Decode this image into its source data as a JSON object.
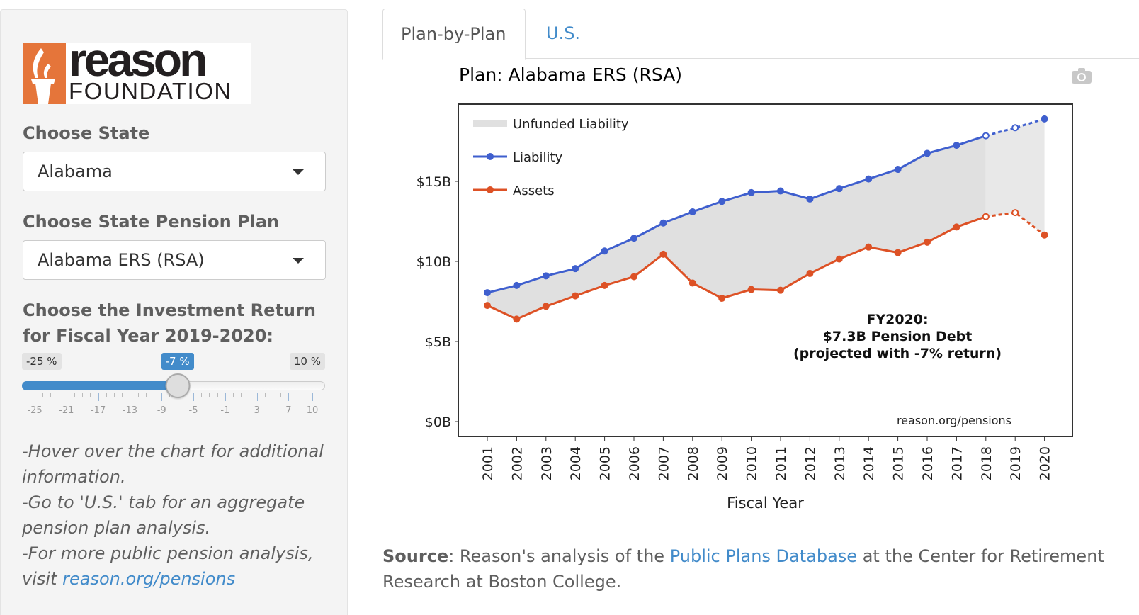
{
  "sidebar": {
    "logo": {
      "word1": "reason",
      "word2": "FOUNDATION",
      "brand_color": "#e5753a"
    },
    "state_label": "Choose State",
    "state_value": "Alabama",
    "plan_label": "Choose State Pension Plan",
    "plan_value": "Alabama ERS (RSA)",
    "return_label_line1": "Choose the Investment Return",
    "return_label_line2": "for Fiscal Year 2019-2020:",
    "slider": {
      "min_label": "-25 %",
      "max_label": "10 %",
      "value_label": "-7 %",
      "min": -25,
      "max": 10,
      "value": -7,
      "tick_labels": [
        "-25",
        "-21",
        "-17",
        "-13",
        "-9",
        "-5",
        "-1",
        "3",
        "7",
        "10"
      ],
      "accent": "#428bca"
    },
    "help": {
      "line1": "-Hover over the chart for additional information.",
      "line2": "-Go to 'U.S.' tab for an aggregate pension plan analysis.",
      "line3_prefix": "-For more public pension analysis, visit ",
      "line3_link": "reason.org/pensions"
    }
  },
  "tabs": [
    {
      "label": "Plan-by-Plan",
      "active": true
    },
    {
      "label": "U.S.",
      "active": false
    }
  ],
  "chart_header": {
    "title": "Plan: Alabama ERS (RSA)",
    "camera_icon": "camera-icon"
  },
  "chart_data": {
    "type": "area",
    "title": "Plan: Alabama ERS (RSA)",
    "xlabel": "Fiscal Year",
    "ylabel": "",
    "x": [
      2001,
      2002,
      2003,
      2004,
      2005,
      2006,
      2007,
      2008,
      2009,
      2010,
      2011,
      2012,
      2013,
      2014,
      2015,
      2016,
      2017,
      2018,
      2019,
      2020
    ],
    "ylim": [
      0,
      20
    ],
    "yticks": [
      0,
      5,
      10,
      15
    ],
    "ytick_labels": [
      "$0B",
      "$5B",
      "$10B",
      "$15B"
    ],
    "units": "billions USD",
    "projected_from": 2018,
    "series": [
      {
        "name": "Liability",
        "color": "#3f5fce",
        "values": [
          8.05,
          8.5,
          9.1,
          9.55,
          10.65,
          11.45,
          12.4,
          13.1,
          13.75,
          14.3,
          14.4,
          13.9,
          14.55,
          15.15,
          15.75,
          16.75,
          17.25,
          17.85,
          18.35,
          18.9
        ]
      },
      {
        "name": "Assets",
        "color": "#dd5125",
        "values": [
          7.25,
          6.4,
          7.2,
          7.85,
          8.5,
          9.05,
          10.45,
          8.65,
          7.7,
          8.25,
          8.2,
          9.25,
          10.15,
          10.9,
          10.55,
          11.2,
          12.15,
          12.8,
          13.05,
          11.65
        ]
      },
      {
        "name": "Unfunded Liability",
        "color": "#e0e0e0",
        "kind": "fill-between"
      }
    ],
    "legend": [
      "Unfunded Liability",
      "Liability",
      "Assets"
    ],
    "legend_position": "top-left",
    "annotation": {
      "line1": "FY2020:",
      "line2": "$7.3B Pension Debt",
      "line3": "(projected with -7% return)"
    },
    "watermark": "reason.org/pensions",
    "grid": false
  },
  "source": {
    "bold": "Source",
    "text1": ": Reason's analysis of the ",
    "link": "Public Plans Database",
    "text2": " at the Center for Retirement Research at Boston College."
  }
}
